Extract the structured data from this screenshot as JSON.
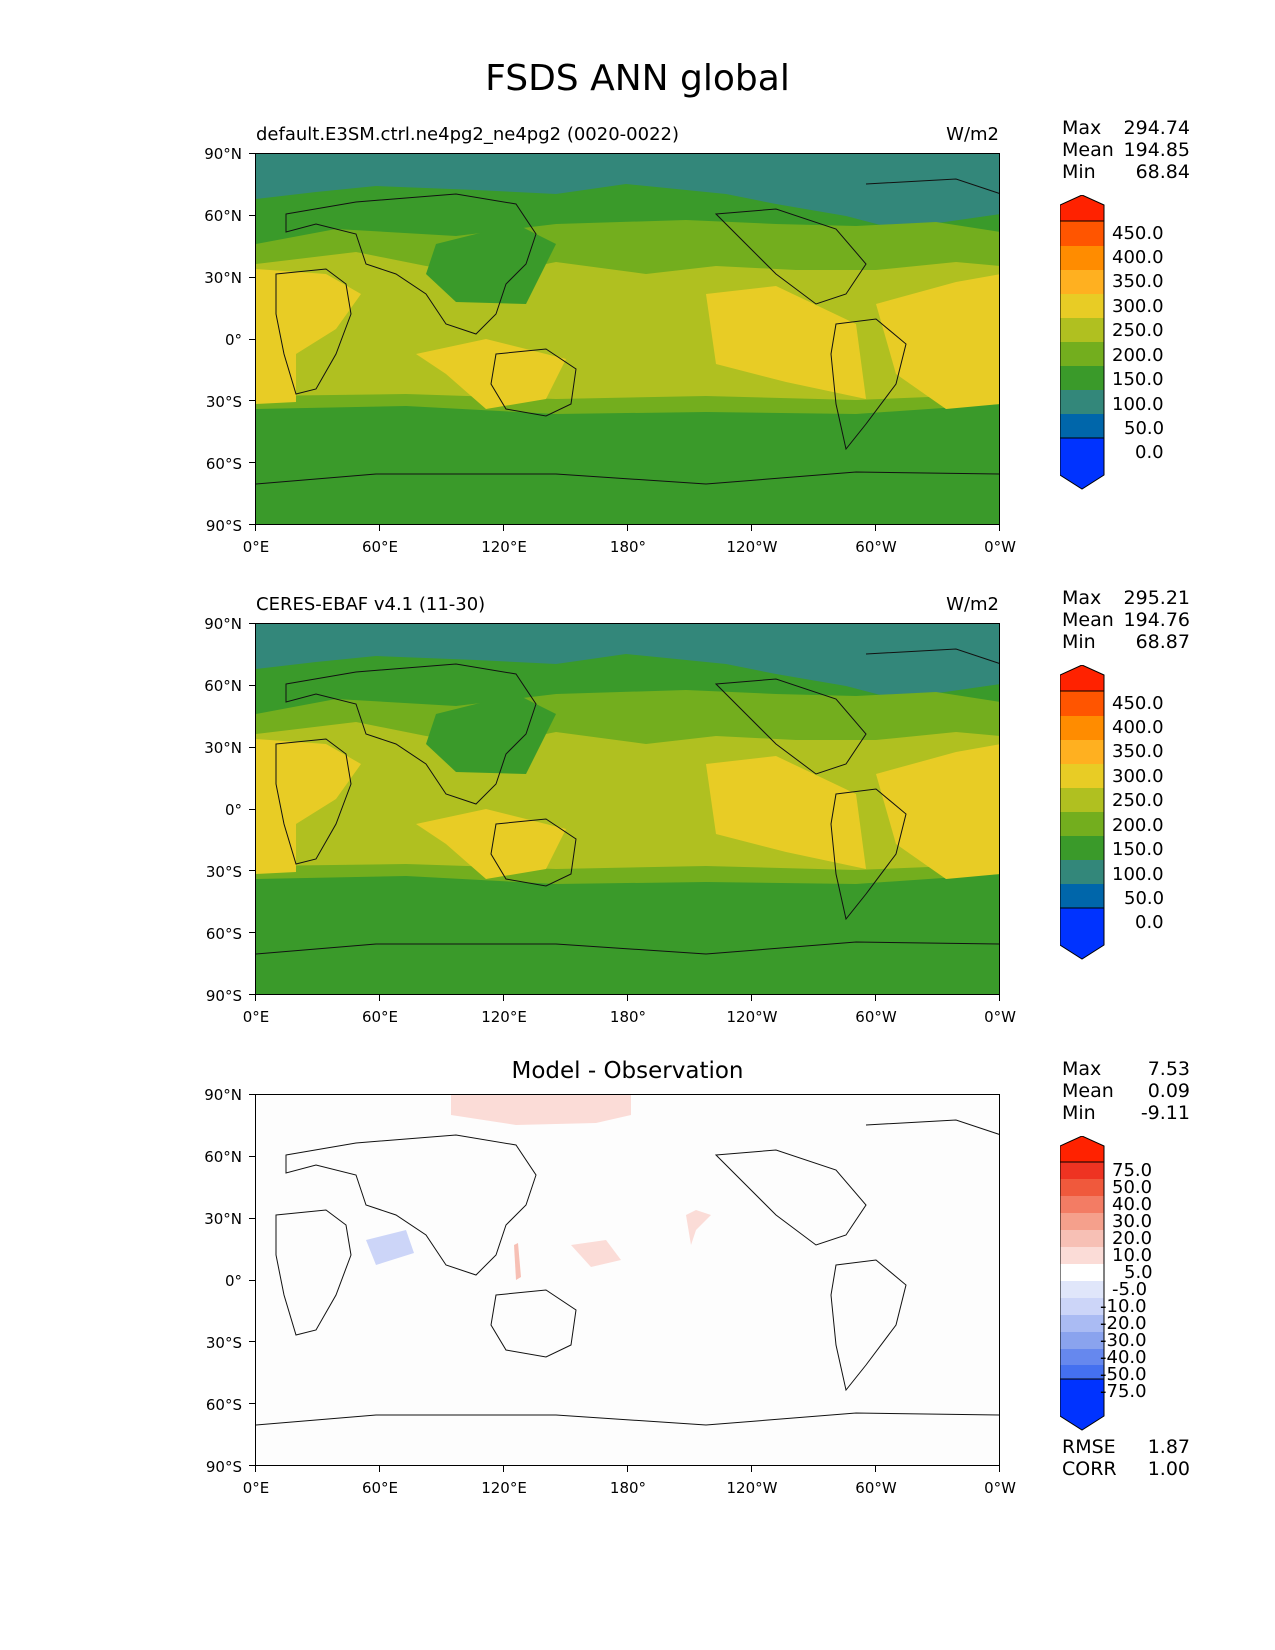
{
  "title": "FSDS ANN global",
  "axis_lats": [
    "90°N",
    "60°N",
    "30°N",
    "0°",
    "30°S",
    "60°S",
    "90°S"
  ],
  "axis_lons": [
    "0°E",
    "60°E",
    "120°E",
    "180°",
    "120°W",
    "60°W",
    "0°W"
  ],
  "panels": [
    {
      "left_title": "default.E3SM.ctrl.ne4pg2_ne4pg2 (0020-0022)",
      "units": "W/m2",
      "stats": {
        "max_label": "Max",
        "max": "294.74",
        "mean_label": "Mean",
        "mean": "194.85",
        "min_label": "Min",
        "min": "68.84"
      },
      "colorbar": [
        "450.0",
        "400.0",
        "350.0",
        "300.0",
        "250.0",
        "200.0",
        "150.0",
        "100.0",
        "50.0",
        "0.0"
      ]
    },
    {
      "left_title": "CERES-EBAF v4.1 (11-30)",
      "units": "W/m2",
      "stats": {
        "max_label": "Max",
        "max": "295.21",
        "mean_label": "Mean",
        "mean": "194.76",
        "min_label": "Min",
        "min": "68.87"
      },
      "colorbar": [
        "450.0",
        "400.0",
        "350.0",
        "300.0",
        "250.0",
        "200.0",
        "150.0",
        "100.0",
        "50.0",
        "0.0"
      ]
    },
    {
      "center_title": "Model - Observation",
      "stats": {
        "max_label": "Max",
        "max": "7.53",
        "mean_label": "Mean",
        "mean": "0.09",
        "min_label": "Min",
        "min": "-9.11"
      },
      "colorbar": [
        "75.0",
        "50.0",
        "40.0",
        "30.0",
        "20.0",
        "10.0",
        "5.0",
        "-5.0",
        "-10.0",
        "-20.0",
        "-30.0",
        "-40.0",
        "-50.0",
        "-75.0"
      ],
      "errors": {
        "rmse_label": "RMSE",
        "rmse": "1.87",
        "corr_label": "CORR",
        "corr": "1.00"
      }
    }
  ],
  "colors": {
    "abs_scale": [
      "#0033ff",
      "#0066aa",
      "#33877a",
      "#3a9a2a",
      "#73ae1e",
      "#b0c020",
      "#e8cc25",
      "#ffb020",
      "#ff8c00",
      "#ff5500",
      "#ff2200"
    ],
    "diff_scale": [
      "#0033ff",
      "#2255ff",
      "#4470f0",
      "#6688ee",
      "#8aa3ee",
      "#aabbf3",
      "#ccd5f8",
      "#e0e6fa",
      "#ffffff",
      "#fbdcd7",
      "#f7c0b5",
      "#f5a08c",
      "#f37c64",
      "#f0593c",
      "#ee3322",
      "#ff2200"
    ]
  }
}
